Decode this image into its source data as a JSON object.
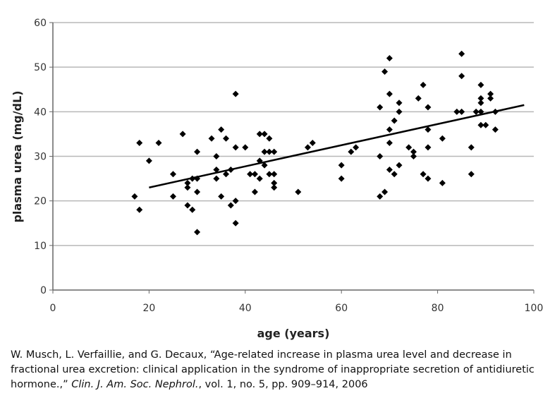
{
  "chart_data": {
    "type": "scatter",
    "xlabel": "age (years)",
    "ylabel": "plasma urea (mg/dL)",
    "xlim": [
      0,
      100
    ],
    "ylim": [
      0,
      60
    ],
    "xticks": [
      0,
      20,
      40,
      60,
      80,
      100
    ],
    "yticks": [
      0,
      10,
      20,
      30,
      40,
      50,
      60
    ],
    "grid": "horizontal",
    "marker": "diamond",
    "color": "#000000",
    "points": [
      [
        17,
        21
      ],
      [
        18,
        18
      ],
      [
        18,
        33
      ],
      [
        20,
        29
      ],
      [
        22,
        33
      ],
      [
        25,
        21
      ],
      [
        25,
        26
      ],
      [
        27,
        35
      ],
      [
        28,
        24
      ],
      [
        28,
        23
      ],
      [
        28,
        19
      ],
      [
        29,
        18
      ],
      [
        29,
        25
      ],
      [
        30,
        25
      ],
      [
        30,
        22
      ],
      [
        30,
        31
      ],
      [
        30,
        13
      ],
      [
        33,
        34
      ],
      [
        34,
        30
      ],
      [
        34,
        27
      ],
      [
        34,
        25
      ],
      [
        35,
        36
      ],
      [
        35,
        21
      ],
      [
        36,
        34
      ],
      [
        36,
        26
      ],
      [
        37,
        27
      ],
      [
        37,
        19
      ],
      [
        38,
        44
      ],
      [
        38,
        32
      ],
      [
        38,
        20
      ],
      [
        38,
        15
      ],
      [
        40,
        32
      ],
      [
        41,
        26
      ],
      [
        42,
        26
      ],
      [
        42,
        22
      ],
      [
        43,
        29
      ],
      [
        43,
        35
      ],
      [
        43,
        25
      ],
      [
        44,
        35
      ],
      [
        44,
        28
      ],
      [
        44,
        31
      ],
      [
        45,
        31
      ],
      [
        45,
        34
      ],
      [
        45,
        26
      ],
      [
        46,
        31
      ],
      [
        46,
        26
      ],
      [
        46,
        24
      ],
      [
        46,
        23
      ],
      [
        51,
        22
      ],
      [
        53,
        32
      ],
      [
        54,
        33
      ],
      [
        60,
        28
      ],
      [
        60,
        25
      ],
      [
        62,
        31
      ],
      [
        63,
        32
      ],
      [
        68,
        41
      ],
      [
        68,
        30
      ],
      [
        68,
        21
      ],
      [
        69,
        49
      ],
      [
        69,
        22
      ],
      [
        70,
        52
      ],
      [
        70,
        44
      ],
      [
        70,
        36
      ],
      [
        70,
        33
      ],
      [
        70,
        27
      ],
      [
        71,
        38
      ],
      [
        71,
        26
      ],
      [
        72,
        40
      ],
      [
        72,
        42
      ],
      [
        72,
        28
      ],
      [
        74,
        32
      ],
      [
        75,
        31
      ],
      [
        75,
        30
      ],
      [
        76,
        43
      ],
      [
        77,
        46
      ],
      [
        77,
        26
      ],
      [
        78,
        41
      ],
      [
        78,
        36
      ],
      [
        78,
        32
      ],
      [
        78,
        25
      ],
      [
        81,
        34
      ],
      [
        81,
        24
      ],
      [
        84,
        40
      ],
      [
        85,
        53
      ],
      [
        85,
        48
      ],
      [
        85,
        40
      ],
      [
        87,
        32
      ],
      [
        87,
        26
      ],
      [
        88,
        40
      ],
      [
        89,
        46
      ],
      [
        89,
        43
      ],
      [
        89,
        42
      ],
      [
        89,
        40
      ],
      [
        89,
        37
      ],
      [
        90,
        37
      ],
      [
        91,
        44
      ],
      [
        91,
        43
      ],
      [
        92,
        40
      ],
      [
        92,
        36
      ]
    ],
    "trendline": [
      [
        20,
        23
      ],
      [
        98,
        41.5
      ]
    ]
  },
  "citation": {
    "part1": "W. Musch, L. Verfaillie, and G. Decaux, “Age-related increase in plasma urea level and decrease in fractional urea excretion: clinical application in the syndrome of inappropriate secretion of antidiuretic hormone.,” ",
    "journal": "Clin. J. Am. Soc. Nephrol.",
    "part2": ", vol. 1, no. 5, pp. 909–914, 2006"
  }
}
